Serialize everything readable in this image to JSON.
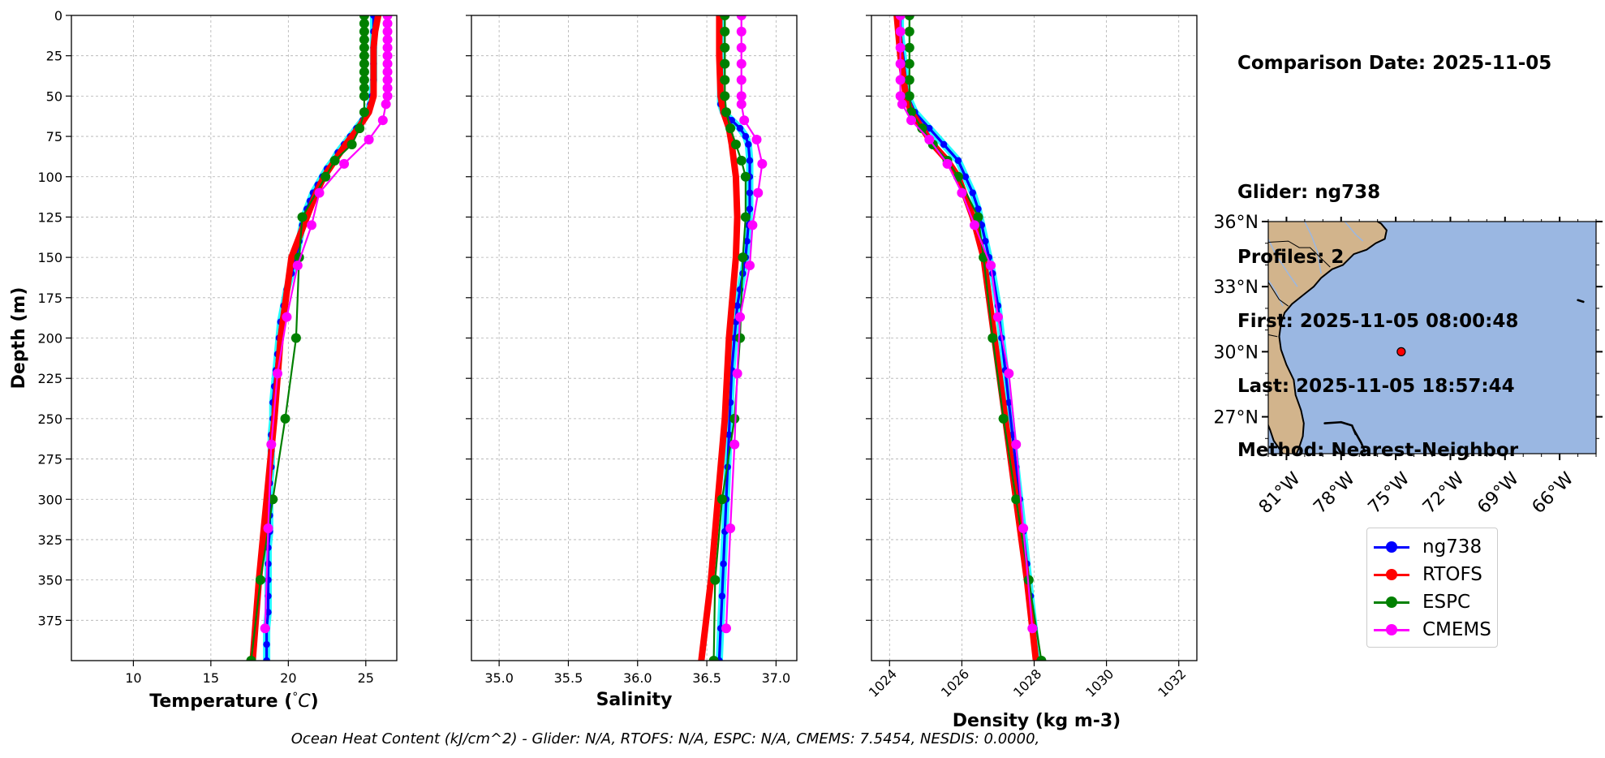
{
  "info": {
    "lines": [
      "Comparison Date: 2025-11-05",
      "",
      "Glider: ng738",
      "Profiles: 2",
      "First: 2025-11-05 08:00:48",
      "Last: 2025-11-05 18:57:44",
      "Method: Nearest-Neighbor"
    ]
  },
  "footer": {
    "text": "Ocean Heat Content (kJ/cm^2) - Glider: N/A,  RTOFS: N/A,  ESPC: N/A,  CMEMS: 7.5454,  NESDIS: 0.0000,"
  },
  "legend": {
    "items": [
      {
        "label": "ng738",
        "color": "#0000ff"
      },
      {
        "label": "RTOFS",
        "color": "#ff0000"
      },
      {
        "label": "ESPC",
        "color": "#008000"
      },
      {
        "label": "CMEMS",
        "color": "#ff00ff"
      }
    ]
  },
  "colors": {
    "glider": "#0000ff",
    "glider_halo": "#00ffff",
    "rtofs": "#ff0000",
    "espc": "#008000",
    "cmems": "#ff00ff",
    "land": "#d2b48c",
    "ocean": "#9ab7e2",
    "grid": "#b0b0b0"
  },
  "map": {
    "lon_range": [
      -82,
      -64
    ],
    "lat_range": [
      25.3,
      36
    ],
    "lon_ticks": [
      -81,
      -78,
      -75,
      -72,
      -69,
      -66
    ],
    "lon_tick_labels": [
      "81°W",
      "78°W",
      "75°W",
      "72°W",
      "69°W",
      "66°W"
    ],
    "lat_ticks": [
      27,
      30,
      33,
      36
    ],
    "lat_tick_labels": [
      "27°N",
      "30°N",
      "33°N",
      "36°N"
    ],
    "glider_location": {
      "lon": -74.7,
      "lat": 30.0
    }
  },
  "chart_data": [
    {
      "type": "line",
      "xlabel": "Temperature (°C)",
      "ylabel": "Depth (m)",
      "xlim": [
        6,
        27
      ],
      "ylim": [
        400,
        0
      ],
      "xticks": [
        10,
        15,
        20,
        25
      ],
      "yticks": [
        0,
        25,
        50,
        75,
        100,
        125,
        150,
        175,
        200,
        225,
        250,
        275,
        300,
        325,
        350,
        375
      ],
      "grid": true,
      "series": [
        {
          "name": "ng738",
          "depth": [
            0,
            10,
            20,
            30,
            40,
            50,
            55,
            60,
            65,
            70,
            75,
            80,
            85,
            90,
            95,
            100,
            105,
            110,
            115,
            120,
            125,
            130,
            140,
            150,
            160,
            170,
            180,
            190,
            200,
            210,
            220,
            230,
            240,
            250,
            260,
            270,
            280,
            290,
            300,
            310,
            320,
            330,
            340,
            350,
            360,
            370,
            380,
            390,
            400
          ],
          "values": [
            25.5,
            25.5,
            25.5,
            25.5,
            25.5,
            25.4,
            25.3,
            25.1,
            24.8,
            24.4,
            24.0,
            23.6,
            23.2,
            22.9,
            22.5,
            22.2,
            21.9,
            21.6,
            21.4,
            21.2,
            21.0,
            20.9,
            20.7,
            20.5,
            20.2,
            19.9,
            19.7,
            19.5,
            19.4,
            19.3,
            19.2,
            19.1,
            19.0,
            19.0,
            18.9,
            18.9,
            18.9,
            18.8,
            18.8,
            18.8,
            18.8,
            18.7,
            18.7,
            18.7,
            18.7,
            18.7,
            18.6,
            18.6,
            18.6
          ]
        },
        {
          "name": "RTOFS",
          "depth": [
            0,
            10,
            20,
            30,
            40,
            50,
            60,
            70,
            80,
            90,
            100,
            110,
            125,
            150,
            200,
            250,
            300,
            350,
            400
          ],
          "values": [
            25.8,
            25.6,
            25.5,
            25.5,
            25.5,
            25.5,
            25.2,
            24.5,
            23.7,
            23.0,
            22.3,
            21.8,
            21.2,
            20.2,
            19.5,
            19.1,
            18.6,
            18.1,
            17.7
          ]
        },
        {
          "name": "ESPC",
          "depth": [
            0,
            5,
            10,
            15,
            20,
            25,
            30,
            35,
            40,
            45,
            50,
            60,
            70,
            80,
            90,
            100,
            125,
            150,
            200,
            250,
            300,
            350,
            400
          ],
          "values": [
            24.9,
            24.9,
            24.9,
            24.9,
            24.9,
            24.9,
            24.9,
            24.9,
            24.9,
            24.9,
            24.9,
            24.9,
            24.6,
            24.1,
            23.0,
            22.4,
            20.9,
            20.7,
            20.5,
            19.8,
            19.0,
            18.2,
            17.6
          ]
        },
        {
          "name": "CMEMS",
          "depth": [
            0,
            5,
            10,
            15,
            20,
            25,
            30,
            35,
            40,
            45,
            50,
            55,
            65,
            77,
            92,
            110,
            130,
            155,
            187,
            222,
            266,
            318,
            380
          ],
          "values": [
            26.4,
            26.4,
            26.4,
            26.4,
            26.4,
            26.4,
            26.4,
            26.4,
            26.4,
            26.4,
            26.4,
            26.3,
            26.1,
            25.2,
            23.6,
            22.0,
            21.5,
            20.6,
            19.9,
            19.3,
            18.9,
            18.7,
            18.5
          ]
        }
      ]
    },
    {
      "type": "line",
      "xlabel": "Salinity",
      "ylabel": "",
      "xlim": [
        34.8,
        37.15
      ],
      "ylim": [
        400,
        0
      ],
      "xticks": [
        35.0,
        35.5,
        36.0,
        36.5,
        37.0
      ],
      "xtick_labels": [
        "35.0",
        "35.5",
        "36.0",
        "36.5",
        "37.0"
      ],
      "grid": true,
      "series": [
        {
          "name": "ng738",
          "depth": [
            0,
            10,
            20,
            30,
            40,
            50,
            55,
            60,
            65,
            70,
            75,
            80,
            90,
            100,
            110,
            120,
            130,
            140,
            150,
            160,
            170,
            180,
            190,
            200,
            220,
            240,
            260,
            280,
            300,
            320,
            340,
            360,
            380,
            400
          ],
          "values": [
            36.6,
            36.6,
            36.6,
            36.6,
            36.6,
            36.6,
            36.6,
            36.62,
            36.68,
            36.74,
            36.78,
            36.8,
            36.81,
            36.81,
            36.81,
            36.81,
            36.8,
            36.79,
            36.78,
            36.76,
            36.74,
            36.72,
            36.71,
            36.7,
            36.68,
            36.67,
            36.66,
            36.65,
            36.64,
            36.63,
            36.62,
            36.61,
            36.6,
            36.59
          ]
        },
        {
          "name": "RTOFS",
          "depth": [
            0,
            25,
            50,
            60,
            70,
            80,
            100,
            125,
            150,
            200,
            250,
            300,
            350,
            400
          ],
          "values": [
            36.59,
            36.59,
            36.6,
            36.62,
            36.66,
            36.68,
            36.71,
            36.72,
            36.71,
            36.66,
            36.63,
            36.58,
            36.53,
            36.46
          ]
        },
        {
          "name": "ESPC",
          "depth": [
            0,
            10,
            20,
            30,
            40,
            50,
            60,
            70,
            80,
            90,
            100,
            125,
            150,
            200,
            250,
            300,
            350,
            400
          ],
          "values": [
            36.63,
            36.63,
            36.63,
            36.63,
            36.63,
            36.63,
            36.64,
            36.67,
            36.71,
            36.75,
            36.78,
            36.78,
            36.76,
            36.74,
            36.7,
            36.61,
            36.56,
            36.55
          ]
        },
        {
          "name": "CMEMS",
          "depth": [
            0,
            10,
            20,
            30,
            40,
            50,
            55,
            65,
            77,
            92,
            110,
            130,
            155,
            187,
            222,
            266,
            318,
            380
          ],
          "values": [
            36.75,
            36.75,
            36.75,
            36.75,
            36.75,
            36.75,
            36.75,
            36.77,
            36.86,
            36.9,
            36.87,
            36.83,
            36.81,
            36.74,
            36.72,
            36.7,
            36.67,
            36.64
          ]
        }
      ]
    },
    {
      "type": "line",
      "xlabel": "Density (kg m-3)",
      "ylabel": "",
      "xlim": [
        1023.5,
        1032.5
      ],
      "ylim": [
        400,
        0
      ],
      "xticks": [
        1024,
        1026,
        1028,
        1030,
        1032
      ],
      "grid": true,
      "series": [
        {
          "name": "ng738",
          "depth": [
            0,
            10,
            20,
            30,
            40,
            50,
            60,
            70,
            80,
            90,
            100,
            110,
            120,
            130,
            140,
            150,
            160,
            180,
            200,
            220,
            240,
            260,
            280,
            300,
            320,
            340,
            360,
            380,
            400
          ],
          "values": [
            1024.3,
            1024.3,
            1024.35,
            1024.4,
            1024.45,
            1024.5,
            1024.7,
            1025.1,
            1025.5,
            1025.9,
            1026.1,
            1026.3,
            1026.45,
            1026.55,
            1026.65,
            1026.75,
            1026.85,
            1027.0,
            1027.1,
            1027.2,
            1027.3,
            1027.4,
            1027.5,
            1027.6,
            1027.7,
            1027.8,
            1027.9,
            1028.0,
            1028.1
          ]
        },
        {
          "name": "RTOFS",
          "depth": [
            0,
            25,
            50,
            60,
            70,
            80,
            90,
            100,
            125,
            150,
            200,
            250,
            300,
            350,
            400
          ],
          "values": [
            1024.2,
            1024.3,
            1024.45,
            1024.6,
            1024.9,
            1025.2,
            1025.6,
            1025.9,
            1026.3,
            1026.6,
            1026.9,
            1027.2,
            1027.5,
            1027.8,
            1028.05
          ]
        },
        {
          "name": "ESPC",
          "depth": [
            0,
            10,
            20,
            30,
            40,
            50,
            60,
            70,
            80,
            90,
            100,
            125,
            150,
            200,
            250,
            300,
            350,
            400
          ],
          "values": [
            1024.55,
            1024.55,
            1024.55,
            1024.55,
            1024.55,
            1024.55,
            1024.6,
            1024.9,
            1025.2,
            1025.6,
            1025.9,
            1026.45,
            1026.6,
            1026.85,
            1027.15,
            1027.5,
            1027.85,
            1028.2
          ]
        },
        {
          "name": "CMEMS",
          "depth": [
            0,
            10,
            20,
            30,
            40,
            50,
            55,
            65,
            77,
            92,
            110,
            130,
            155,
            187,
            222,
            266,
            318,
            380
          ],
          "values": [
            1024.3,
            1024.3,
            1024.3,
            1024.3,
            1024.3,
            1024.3,
            1024.35,
            1024.6,
            1025.1,
            1025.6,
            1026.0,
            1026.35,
            1026.8,
            1027.0,
            1027.3,
            1027.5,
            1027.7,
            1027.95
          ]
        }
      ]
    }
  ]
}
